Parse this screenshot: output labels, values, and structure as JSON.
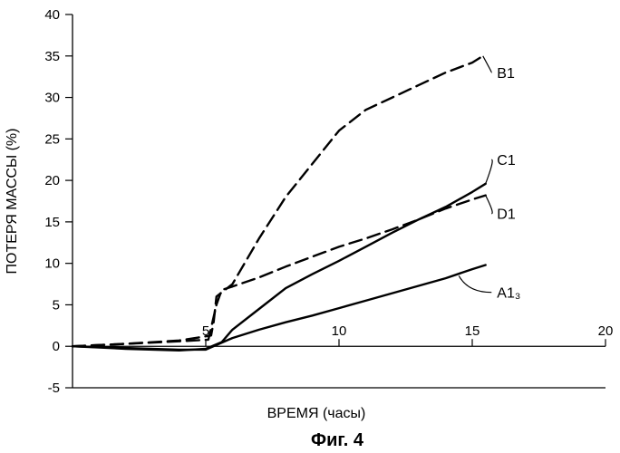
{
  "chart_data": {
    "type": "line",
    "title": "",
    "xlabel": "ВРЕМЯ (часы)",
    "ylabel": "ПОТЕРЯ МАССЫ (%)",
    "xlim": [
      0,
      20
    ],
    "ylim": [
      -5,
      40
    ],
    "x_ticks": [
      "5",
      "10",
      "15",
      "20"
    ],
    "y_ticks": [
      "40",
      "35",
      "30",
      "25",
      "20",
      "15",
      "10",
      "5",
      "0",
      "-5"
    ],
    "grid": false,
    "legend": "none",
    "caption": "Фиг. 4",
    "series": [
      {
        "name": "B1",
        "style": "dashed",
        "points": [
          [
            0,
            0
          ],
          [
            2,
            0.3
          ],
          [
            4,
            0.7
          ],
          [
            5.2,
            1.3
          ],
          [
            5.3,
            3
          ],
          [
            5.4,
            6
          ],
          [
            6,
            7.5
          ],
          [
            7,
            13
          ],
          [
            8,
            18
          ],
          [
            9,
            22
          ],
          [
            10,
            26
          ],
          [
            11,
            28.5
          ],
          [
            12,
            30
          ],
          [
            13,
            31.5
          ],
          [
            14,
            33
          ],
          [
            15,
            34.2
          ],
          [
            15.4,
            35
          ]
        ]
      },
      {
        "name": "C1",
        "style": "solid",
        "points": [
          [
            0,
            0
          ],
          [
            2,
            -0.3
          ],
          [
            4,
            -0.5
          ],
          [
            5,
            -0.3
          ],
          [
            5.6,
            0.5
          ],
          [
            6,
            2
          ],
          [
            7,
            4.5
          ],
          [
            8,
            7
          ],
          [
            9,
            8.7
          ],
          [
            10,
            10.3
          ],
          [
            11,
            12
          ],
          [
            12,
            13.7
          ],
          [
            13,
            15.3
          ],
          [
            14,
            16.8
          ],
          [
            15,
            18.6
          ],
          [
            15.5,
            19.6
          ]
        ]
      },
      {
        "name": "D1",
        "style": "dashed",
        "points": [
          [
            0,
            0
          ],
          [
            2,
            0.3
          ],
          [
            4,
            0.6
          ],
          [
            5.1,
            0.8
          ],
          [
            5.4,
            5
          ],
          [
            5.6,
            6.8
          ],
          [
            6,
            7.2
          ],
          [
            7,
            8.3
          ],
          [
            8,
            9.6
          ],
          [
            9,
            10.8
          ],
          [
            10,
            12
          ],
          [
            11,
            13
          ],
          [
            12,
            14.1
          ],
          [
            13,
            15.3
          ],
          [
            14,
            16.6
          ],
          [
            15,
            17.7
          ],
          [
            15.5,
            18.2
          ]
        ]
      },
      {
        "name": "A1₃",
        "style": "solid",
        "points": [
          [
            0,
            0
          ],
          [
            2,
            -0.2
          ],
          [
            4,
            -0.4
          ],
          [
            5,
            -0.4
          ],
          [
            5.5,
            0.3
          ],
          [
            6,
            1
          ],
          [
            7,
            2
          ],
          [
            8,
            2.9
          ],
          [
            9,
            3.7
          ],
          [
            10,
            4.6
          ],
          [
            11,
            5.5
          ],
          [
            12,
            6.4
          ],
          [
            13,
            7.3
          ],
          [
            14,
            8.2
          ],
          [
            15,
            9.3
          ],
          [
            15.5,
            9.8
          ]
        ]
      }
    ],
    "labels": [
      {
        "series": "B1",
        "text": "B1",
        "anchor": [
          15.4,
          35
        ],
        "label_at": [
          16.2,
          33
        ]
      },
      {
        "series": "C1",
        "text": "C1",
        "anchor": [
          15.5,
          19.6
        ],
        "label_at": [
          16.2,
          22.5
        ]
      },
      {
        "series": "D1",
        "text": "D1",
        "anchor": [
          15.5,
          18.2
        ],
        "label_at": [
          16.2,
          16
        ]
      },
      {
        "series": "A1₃",
        "text": "A1₃",
        "anchor": [
          14.5,
          8.5
        ],
        "label_at": [
          16.2,
          6.5
        ]
      }
    ]
  }
}
